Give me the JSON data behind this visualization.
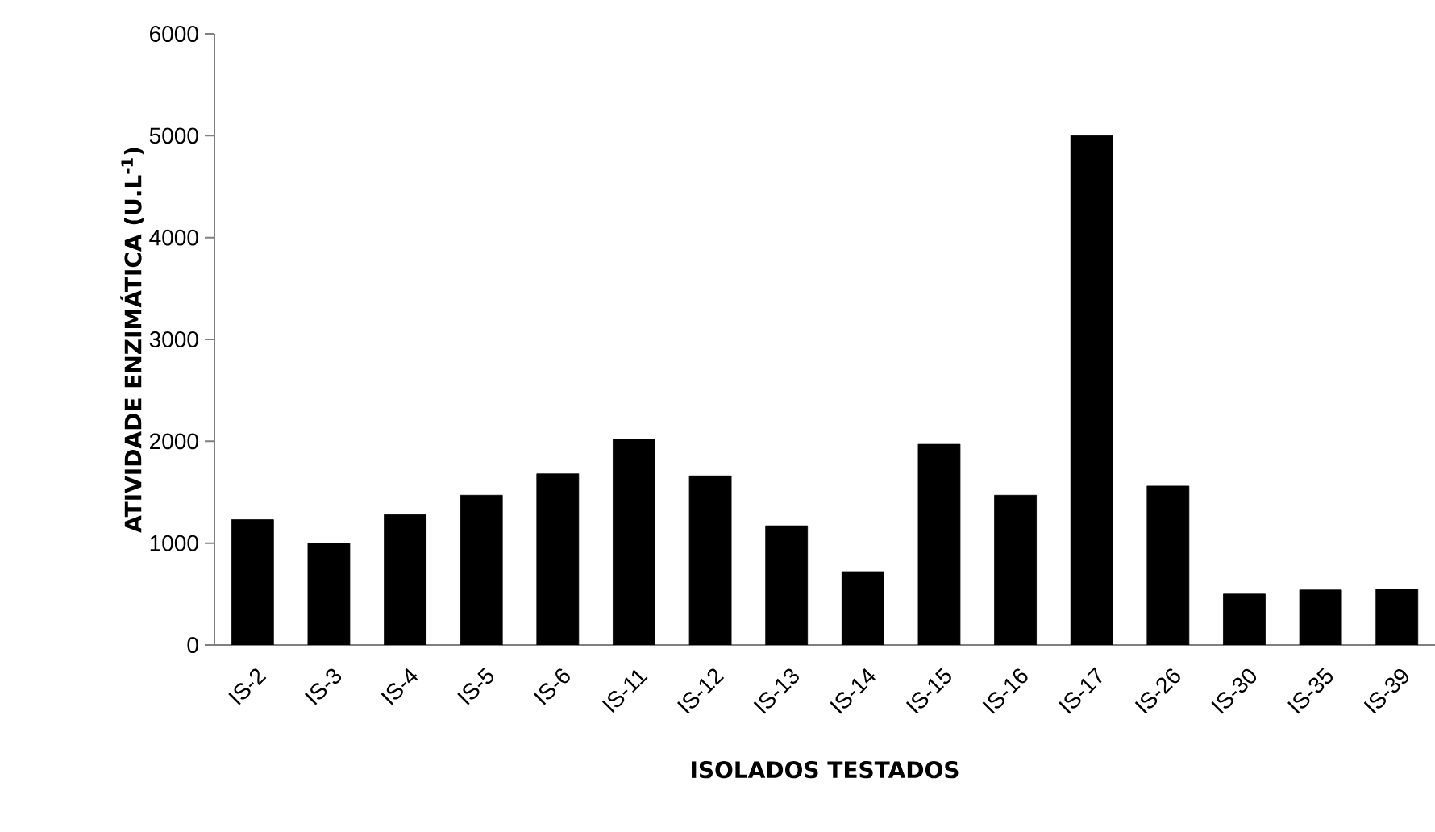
{
  "chart_data": {
    "type": "bar",
    "xlabel": "ISOLADOS TESTADOS",
    "ylabel": "ATIVIDADE ENZIMÁTICA (U.L$^{-1}$)",
    "categories": [
      "IS-2",
      "IS-3",
      "IS-4",
      "IS-5",
      "IS-6",
      "IS-11",
      "IS-12",
      "IS-13",
      "IS-14",
      "IS-15",
      "IS-16",
      "IS-17",
      "IS-26",
      "IS-30",
      "IS-35",
      "IS-39"
    ],
    "values": [
      1230,
      1000,
      1280,
      1470,
      1680,
      2020,
      1660,
      1170,
      720,
      1970,
      1470,
      5000,
      1560,
      500,
      540,
      550
    ],
    "color": "#000000",
    "ylim": [
      0,
      6000
    ],
    "yticks": [
      0,
      1000,
      2000,
      3000,
      4000,
      5000,
      6000
    ],
    "grid": false
  }
}
